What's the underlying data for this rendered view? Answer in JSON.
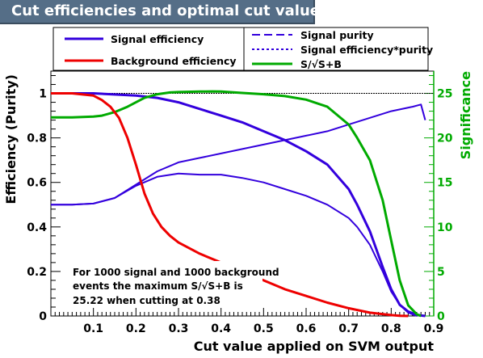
{
  "title": "Cut efficiencies and optimal cut value",
  "colors": {
    "signal_efficiency": "#3300dd",
    "background_efficiency": "#ee0000",
    "signal_purity": "#3300dd",
    "signal_eff_purity": "#3300dd",
    "significance": "#00aa00",
    "title_bg": "#556e87",
    "frame_bg": "#e6e6e6"
  },
  "annotation": {
    "line1": "For 1000 signal and 1000 background",
    "line2": "events the maximum S/√S+B is",
    "line3": "25.22 when cutting at  0.38"
  },
  "chart_data": {
    "type": "line",
    "xlabel": "Cut value applied on SVM output",
    "ylabel": "Efficiency (Purity)",
    "y2label": "Significance",
    "xlim": [
      0.0,
      0.9
    ],
    "ylim": [
      0,
      1.1
    ],
    "y2lim": [
      0,
      27.5
    ],
    "x_ticks": [
      "0.1",
      "0.2",
      "0.3",
      "0.4",
      "0.5",
      "0.6",
      "0.7",
      "0.8",
      "0.9"
    ],
    "y_ticks": [
      "0",
      "0.2",
      "0.4",
      "0.6",
      "0.8",
      "1"
    ],
    "y2_ticks": [
      "0",
      "5",
      "10",
      "15",
      "20",
      "25"
    ],
    "legend_position": "top",
    "series": [
      {
        "name": "Signal efficiency",
        "key": "sig_eff",
        "axis": "left",
        "style": "solid",
        "x": [
          0.0,
          0.1,
          0.2,
          0.25,
          0.3,
          0.35,
          0.4,
          0.45,
          0.5,
          0.55,
          0.6,
          0.65,
          0.7,
          0.72,
          0.75,
          0.78,
          0.8,
          0.82,
          0.84,
          0.86,
          0.87,
          0.88
        ],
        "y": [
          1.0,
          1.0,
          0.99,
          0.98,
          0.96,
          0.93,
          0.9,
          0.87,
          0.83,
          0.79,
          0.74,
          0.68,
          0.57,
          0.5,
          0.38,
          0.22,
          0.12,
          0.05,
          0.02,
          0.005,
          0.002,
          0.0
        ]
      },
      {
        "name": "Background efficiency",
        "key": "bkg_eff",
        "axis": "left",
        "style": "solid",
        "x": [
          0.0,
          0.05,
          0.1,
          0.12,
          0.14,
          0.16,
          0.18,
          0.2,
          0.22,
          0.24,
          0.26,
          0.28,
          0.3,
          0.35,
          0.4,
          0.45,
          0.5,
          0.55,
          0.6,
          0.65,
          0.7,
          0.75,
          0.8,
          0.82,
          0.84
        ],
        "y": [
          1.0,
          1.0,
          0.99,
          0.97,
          0.94,
          0.89,
          0.8,
          0.68,
          0.55,
          0.46,
          0.4,
          0.36,
          0.33,
          0.28,
          0.24,
          0.2,
          0.16,
          0.12,
          0.09,
          0.06,
          0.035,
          0.015,
          0.004,
          0.001,
          0.0
        ]
      },
      {
        "name": "Signal purity",
        "key": "purity",
        "axis": "left",
        "style": "dashed",
        "x": [
          0.0,
          0.05,
          0.1,
          0.15,
          0.2,
          0.25,
          0.3,
          0.35,
          0.4,
          0.45,
          0.5,
          0.55,
          0.6,
          0.65,
          0.7,
          0.75,
          0.8,
          0.85,
          0.87,
          0.88
        ],
        "y": [
          0.5,
          0.5,
          0.505,
          0.53,
          0.59,
          0.65,
          0.69,
          0.71,
          0.73,
          0.75,
          0.77,
          0.79,
          0.81,
          0.83,
          0.86,
          0.89,
          0.92,
          0.94,
          0.95,
          0.88
        ]
      },
      {
        "name": "Signal efficiency*purity",
        "key": "eff_purity",
        "axis": "left",
        "style": "dotted",
        "x": [
          0.0,
          0.05,
          0.1,
          0.15,
          0.2,
          0.25,
          0.3,
          0.35,
          0.38,
          0.4,
          0.45,
          0.5,
          0.55,
          0.6,
          0.65,
          0.7,
          0.72,
          0.75,
          0.78,
          0.8,
          0.82,
          0.84,
          0.86
        ],
        "y": [
          0.5,
          0.5,
          0.505,
          0.53,
          0.585,
          0.625,
          0.64,
          0.635,
          0.635,
          0.635,
          0.62,
          0.6,
          0.57,
          0.54,
          0.5,
          0.44,
          0.4,
          0.32,
          0.2,
          0.11,
          0.05,
          0.015,
          0.0
        ]
      },
      {
        "name": "S/√S+B",
        "key": "significance",
        "axis": "right",
        "style": "solid",
        "x": [
          0.0,
          0.05,
          0.1,
          0.12,
          0.15,
          0.18,
          0.2,
          0.22,
          0.25,
          0.28,
          0.3,
          0.35,
          0.38,
          0.4,
          0.45,
          0.5,
          0.55,
          0.6,
          0.65,
          0.7,
          0.72,
          0.75,
          0.78,
          0.8,
          0.82,
          0.84,
          0.86,
          0.87
        ],
        "y": [
          22.3,
          22.3,
          22.4,
          22.5,
          22.9,
          23.5,
          24.0,
          24.5,
          24.9,
          25.1,
          25.15,
          25.2,
          25.22,
          25.2,
          25.05,
          24.9,
          24.7,
          24.3,
          23.5,
          21.5,
          20.0,
          17.5,
          13.0,
          8.5,
          4.0,
          1.2,
          0.2,
          0.0
        ]
      }
    ]
  }
}
